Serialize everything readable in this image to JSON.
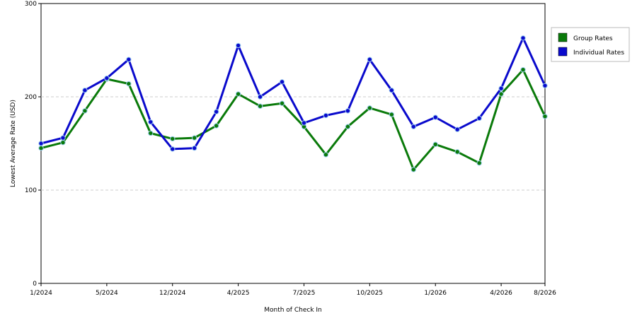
{
  "chart_data": {
    "type": "line",
    "xlabel": "Month of Check In",
    "ylabel": "Lowest Average Rate (USD)",
    "ylim": [
      0,
      300
    ],
    "yticks": [
      0,
      100,
      200,
      300
    ],
    "xtick_labels": [
      "1/2024",
      "5/2024",
      "12/2024",
      "4/2025",
      "7/2025",
      "10/2025",
      "1/2026",
      "4/2026",
      "8/2026"
    ],
    "xtick_indices": [
      0,
      3,
      6,
      9,
      12,
      15,
      18,
      21,
      23
    ],
    "grid": "horizontal-dashed",
    "legend_position": "right",
    "series": [
      {
        "name": "Group Rates",
        "color": "#0a7a0a",
        "values": [
          145,
          151,
          185,
          219,
          214,
          161,
          155,
          156,
          169,
          203,
          190,
          193,
          168,
          138,
          168,
          188,
          181,
          122,
          149,
          141,
          129,
          203,
          229,
          179
        ]
      },
      {
        "name": "Individual Rates",
        "color": "#0a0acc",
        "values": [
          150,
          156,
          207,
          220,
          240,
          173,
          144,
          145,
          184,
          255,
          200,
          216,
          172,
          180,
          185,
          240,
          207,
          168,
          178,
          165,
          177,
          209,
          263,
          212
        ]
      }
    ]
  }
}
